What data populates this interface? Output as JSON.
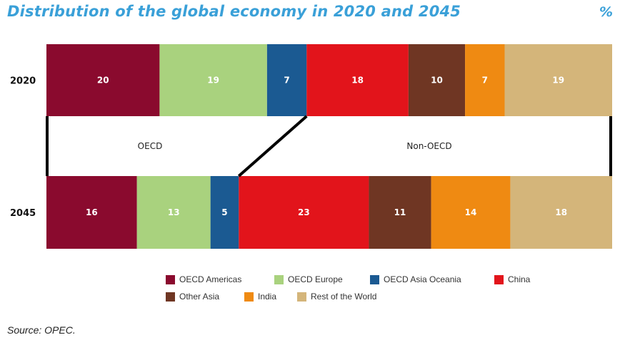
{
  "chart_data": {
    "type": "stacked-bar-horizontal",
    "title": "Distribution of the global economy in 2020 and 2045",
    "unit": "%",
    "categories": [
      "2020",
      "2045"
    ],
    "series": [
      {
        "name": "OECD Americas",
        "color": "#8a0a2e",
        "values": [
          20,
          16
        ]
      },
      {
        "name": "OECD Europe",
        "color": "#a9d27e",
        "values": [
          19,
          13
        ]
      },
      {
        "name": "OECD Asia Oceania",
        "color": "#1b5a92",
        "values": [
          7,
          5
        ]
      },
      {
        "name": "China",
        "color": "#e2141b",
        "values": [
          18,
          23
        ]
      },
      {
        "name": "Other Asia",
        "color": "#6f3623",
        "values": [
          10,
          11
        ]
      },
      {
        "name": "India",
        "color": "#ef8a12",
        "values": [
          7,
          14
        ]
      },
      {
        "name": "Rest of the World",
        "color": "#d4b57a",
        "values": [
          19,
          18
        ]
      }
    ],
    "groups": [
      "OECD",
      "Non-OECD"
    ],
    "source": "Source: OPEC."
  }
}
